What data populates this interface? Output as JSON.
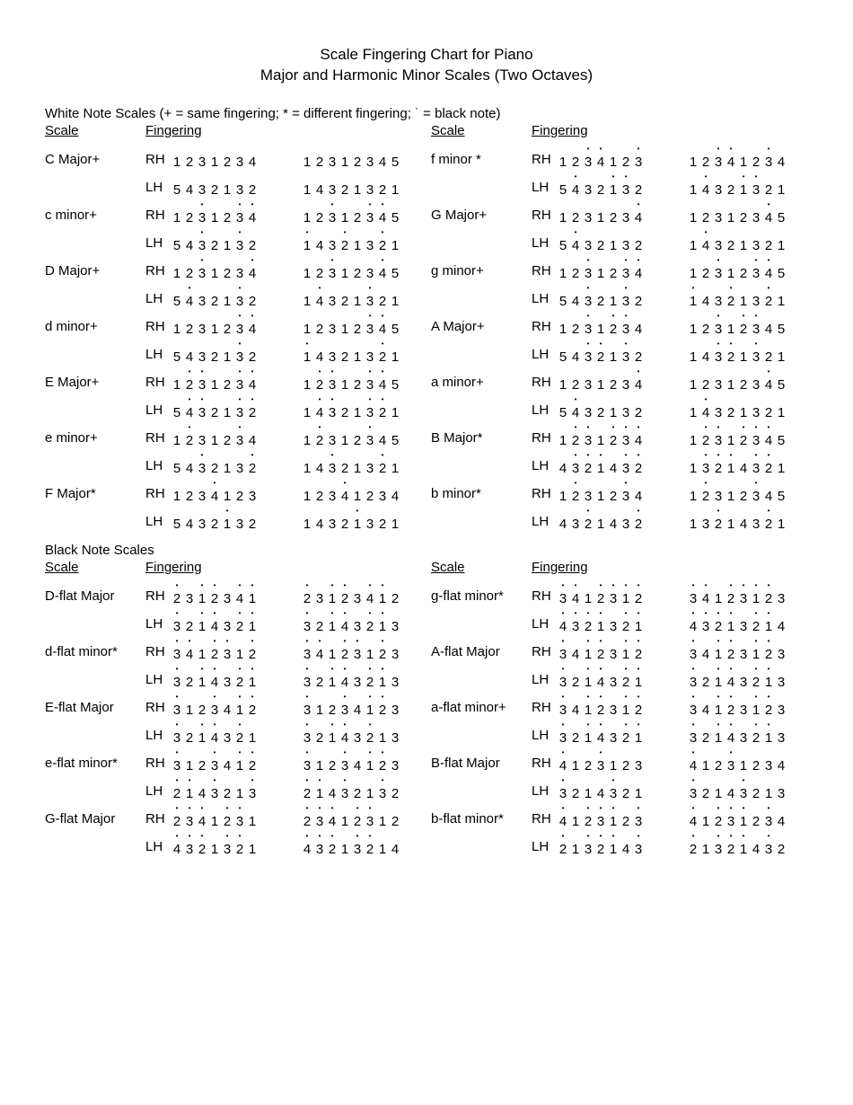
{
  "title_line1": "Scale Fingering Chart for Piano",
  "title_line2": "Major and Harmonic Minor Scales (Two Octaves)",
  "white_section_label": "White Note Scales  (+ = same fingering;  * = different fingering;  ˙ = black note)",
  "black_section_label": "Black Note Scales",
  "hdr_scale": "Scale",
  "hdr_fingering": "Fingering",
  "rh_label": "RH",
  "lh_label": "LH",
  "white_left": [
    {
      "name": "C Major+",
      "rh": {
        "o1": {
          "d": "1231234",
          "b": ""
        },
        "o2": {
          "d": "12312345",
          "b": ""
        }
      },
      "lh": {
        "o1": {
          "d": "5432132",
          "b": ""
        },
        "o2": {
          "d": "14321321",
          "b": ""
        }
      }
    },
    {
      "name": "c minor+",
      "rh": {
        "o1": {
          "d": "1231234",
          "b": "  x  xx"
        },
        "o2": {
          "d": "12312345",
          "b": "  x  xx"
        }
      },
      "lh": {
        "o1": {
          "d": "5432132",
          "b": "  x  x "
        },
        "o2": {
          "d": "14321321",
          "b": "x  x  x"
        }
      }
    },
    {
      "name": "D Major+",
      "rh": {
        "o1": {
          "d": "1231234",
          "b": "  x   x"
        },
        "o2": {
          "d": "12312345",
          "b": "  x   x"
        }
      },
      "lh": {
        "o1": {
          "d": "5432132",
          "b": " x   x "
        },
        "o2": {
          "d": "14321321",
          "b": " x   x "
        }
      }
    },
    {
      "name": "d minor+",
      "rh": {
        "o1": {
          "d": "1231234",
          "b": "     xx"
        },
        "o2": {
          "d": "12312345",
          "b": "     xx"
        }
      },
      "lh": {
        "o1": {
          "d": "5432132",
          "b": "     x "
        },
        "o2": {
          "d": "14321321",
          "b": "x     x"
        }
      }
    },
    {
      "name": "E Major+",
      "rh": {
        "o1": {
          "d": "1231234",
          "b": " xx  xx"
        },
        "o2": {
          "d": "12312345",
          "b": " xx  xx"
        }
      },
      "lh": {
        "o1": {
          "d": "5432132",
          "b": " xx  xx"
        },
        "o2": {
          "d": "14321321",
          "b": " xx  xx"
        }
      }
    },
    {
      "name": "e minor+",
      "rh": {
        "o1": {
          "d": "1231234",
          "b": " x   x "
        },
        "o2": {
          "d": "12312345",
          "b": " x   x "
        }
      },
      "lh": {
        "o1": {
          "d": "5432132",
          "b": "  x   x"
        },
        "o2": {
          "d": "14321321",
          "b": "  x   x"
        }
      }
    },
    {
      "name": "F Major*",
      "rh": {
        "o1": {
          "d": "1234123",
          "b": "   x   "
        },
        "o2": {
          "d": "12341234",
          "b": "   x   "
        }
      },
      "lh": {
        "o1": {
          "d": "5432132",
          "b": "    x  "
        },
        "o2": {
          "d": "14321321",
          "b": "    x  "
        }
      }
    }
  ],
  "white_right": [
    {
      "name": "f minor *",
      "rh": {
        "o1": {
          "d": "1234123",
          "b": "  xx  x"
        },
        "o2": {
          "d": "12341234",
          "b": "  xx  x"
        }
      },
      "lh": {
        "o1": {
          "d": "5432132",
          "b": " x  xx "
        },
        "o2": {
          "d": "14321321",
          "b": " x  xx "
        }
      }
    },
    {
      "name": "G Major+",
      "rh": {
        "o1": {
          "d": "1231234",
          "b": "      x"
        },
        "o2": {
          "d": "12312345",
          "b": "      x"
        }
      },
      "lh": {
        "o1": {
          "d": "5432132",
          "b": " x     "
        },
        "o2": {
          "d": "14321321",
          "b": " x     "
        }
      }
    },
    {
      "name": "g minor+",
      "rh": {
        "o1": {
          "d": "1231234",
          "b": "  x  xx"
        },
        "o2": {
          "d": "12312345",
          "b": "  x  xx"
        }
      },
      "lh": {
        "o1": {
          "d": "5432132",
          "b": "  x  x "
        },
        "o2": {
          "d": "14321321",
          "b": "x  x  x"
        }
      }
    },
    {
      "name": "A Major+",
      "rh": {
        "o1": {
          "d": "1231234",
          "b": "  x xx "
        },
        "o2": {
          "d": "12312345",
          "b": "  x xx "
        }
      },
      "lh": {
        "o1": {
          "d": "5432132",
          "b": "  xx x "
        },
        "o2": {
          "d": "14321321",
          "b": "  xx x "
        }
      }
    },
    {
      "name": "a minor+",
      "rh": {
        "o1": {
          "d": "1231234",
          "b": "      x"
        },
        "o2": {
          "d": "12312345",
          "b": "      x"
        }
      },
      "lh": {
        "o1": {
          "d": "5432132",
          "b": " x     "
        },
        "o2": {
          "d": "14321321",
          "b": " x     "
        }
      }
    },
    {
      "name": "B Major*",
      "rh": {
        "o1": {
          "d": "1231234",
          "b": " xx xxx"
        },
        "o2": {
          "d": "12312345",
          "b": " xx xxx"
        }
      },
      "lh": {
        "o1": {
          "d": "4321432",
          "b": " xxx xx"
        },
        "o2": {
          "d": "13214321",
          "b": " xxx xx"
        }
      }
    },
    {
      "name": "b minor*",
      "rh": {
        "o1": {
          "d": "1231234",
          "b": " x   x "
        },
        "o2": {
          "d": "12312345",
          "b": " x   x "
        }
      },
      "lh": {
        "o1": {
          "d": "4321432",
          "b": "  x   x"
        },
        "o2": {
          "d": "13214321",
          "b": "  x   x"
        }
      }
    }
  ],
  "black_left": [
    {
      "name": "D-flat Major",
      "rh": {
        "o1": {
          "d": "2312341",
          "b": "x xx xx"
        },
        "o2": {
          "d": "23123412",
          "b": "x xx xx"
        }
      },
      "lh": {
        "o1": {
          "d": "3214321",
          "b": "x xx xx"
        },
        "o2": {
          "d": "32143213",
          "b": "x xx xx"
        }
      }
    },
    {
      "name": "d-flat minor*",
      "rh": {
        "o1": {
          "d": "3412312",
          "b": "xx xx x"
        },
        "o2": {
          "d": "34123123",
          "b": "xx xx x"
        }
      },
      "lh": {
        "o1": {
          "d": "3214321",
          "b": "x xx xx"
        },
        "o2": {
          "d": "32143213",
          "b": "x xx xx"
        }
      }
    },
    {
      "name": "E-flat Major",
      "rh": {
        "o1": {
          "d": "3123412",
          "b": "x  x xx"
        },
        "o2": {
          "d": "31234123",
          "b": "x  x xx"
        }
      },
      "lh": {
        "o1": {
          "d": "3214321",
          "b": "x xx x "
        },
        "o2": {
          "d": "32143213",
          "b": "x xx x "
        }
      }
    },
    {
      "name": "e-flat minor*",
      "rh": {
        "o1": {
          "d": "3123412",
          "b": "x  x xx"
        },
        "o2": {
          "d": "31234123",
          "b": "x  x xx"
        }
      },
      "lh": {
        "o1": {
          "d": "2143213",
          "b": "xx x  x"
        },
        "o2": {
          "d": "21432132",
          "b": "xx x  x"
        }
      }
    },
    {
      "name": "G-flat Major",
      "rh": {
        "o1": {
          "d": "2341231",
          "b": "xxx xx "
        },
        "o2": {
          "d": "23412312",
          "b": "xxx xx "
        }
      },
      "lh": {
        "o1": {
          "d": "4321321",
          "b": "xxx xx "
        },
        "o2": {
          "d": "43213214",
          "b": "xxx xx "
        }
      }
    }
  ],
  "black_right": [
    {
      "name": "g-flat minor*",
      "rh": {
        "o1": {
          "d": "3412312",
          "b": "xx xxxx"
        },
        "o2": {
          "d": "34123123",
          "b": "xx xxxx"
        }
      },
      "lh": {
        "o1": {
          "d": "4321321",
          "b": "xxxx xx"
        },
        "o2": {
          "d": "43213214",
          "b": "xxxx xx"
        }
      }
    },
    {
      "name": "A-flat Major",
      "rh": {
        "o1": {
          "d": "3412312",
          "b": "x xx xx"
        },
        "o2": {
          "d": "34123123",
          "b": "x xx xx"
        }
      },
      "lh": {
        "o1": {
          "d": "3214321",
          "b": "x xx xx"
        },
        "o2": {
          "d": "32143213",
          "b": "x xx xx"
        }
      }
    },
    {
      "name": "a-flat minor+",
      "rh": {
        "o1": {
          "d": "3412312",
          "b": "x xx xx"
        },
        "o2": {
          "d": "34123123",
          "b": "x xx xx"
        }
      },
      "lh": {
        "o1": {
          "d": "3214321",
          "b": "x xx xx"
        },
        "o2": {
          "d": "32143213",
          "b": "x xx xx"
        }
      }
    },
    {
      "name": "B-flat Major",
      "rh": {
        "o1": {
          "d": "4123123",
          "b": "x  x  "
        },
        "o2": {
          "d": "41231234",
          "b": "x  x  "
        }
      },
      "lh": {
        "o1": {
          "d": "3214321",
          "b": "x   x  "
        },
        "o2": {
          "d": "32143213",
          "b": "x   x  "
        }
      }
    },
    {
      "name": "b-flat minor*",
      "rh": {
        "o1": {
          "d": "4123123",
          "b": "x xxx x"
        },
        "o2": {
          "d": "41231234",
          "b": "x xxx x"
        }
      },
      "lh": {
        "o1": {
          "d": "2132143",
          "b": "x xxx x"
        },
        "o2": {
          "d": "21321432",
          "b": "x xxx x"
        }
      }
    }
  ]
}
